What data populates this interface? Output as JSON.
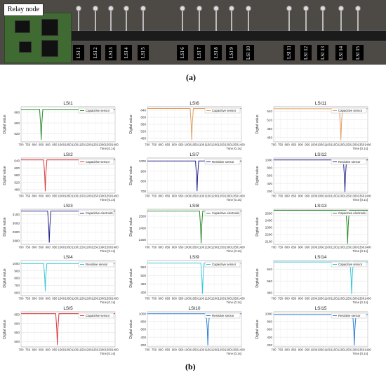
{
  "photo": {
    "relay_label": "Relay node",
    "lsi_labels": [
      "LSI 1",
      "LSI 2",
      "LSI 3",
      "LSI 4",
      "LSI 5",
      "LSI 6",
      "LSI 7",
      "LSI 8",
      "LSI 9",
      "LSI 10",
      "LSI 11",
      "LSI 12",
      "LSI 13",
      "LSI 14",
      "LSI 15"
    ],
    "caption": "(a)"
  },
  "caption_b": "(b)",
  "colors": {
    "green": "#2e8b2e",
    "orange": "#e0a060",
    "red": "#d83a3a",
    "navy": "#24248c",
    "cyan": "#38c8d8",
    "blue": "#2e7fd4"
  },
  "chart_data": [
    {
      "type": "line",
      "title": "LSI1",
      "ylabel": "Digital value",
      "xlabel": "Time [0.1s]",
      "xticks": [
        700,
        750,
        800,
        850,
        900,
        950,
        1000,
        1050,
        1100,
        1150,
        1200,
        1250,
        1300,
        1350,
        1400
      ],
      "yticks": [
        520,
        600,
        680
      ],
      "ylim": [
        460,
        720
      ],
      "legend": "Capacitive sensor",
      "color": "green",
      "baseline": 700,
      "dip_x": 850,
      "dip_y": 475
    },
    {
      "type": "line",
      "title": "LSI6",
      "ylabel": "Digital value",
      "xlabel": "Time [0.1s]",
      "xticks": [
        700,
        750,
        800,
        850,
        900,
        950,
        1000,
        1050,
        1100,
        1150,
        1200,
        1250,
        1300,
        1350,
        1400
      ],
      "yticks": [
        480,
        520,
        560,
        600,
        640
      ],
      "ylim": [
        460,
        660
      ],
      "legend": "Capacitive sensor",
      "color": "orange",
      "baseline": 650,
      "dip_x": 1030,
      "dip_y": 470
    },
    {
      "type": "line",
      "title": "LSI11",
      "ylabel": "Digital value",
      "xlabel": "Time [0.1s]",
      "xticks": [
        700,
        750,
        800,
        850,
        900,
        950,
        1000,
        1050,
        1100,
        1150,
        1200,
        1250,
        1300,
        1350,
        1400
      ],
      "yticks": [
        450,
        480,
        510,
        540
      ],
      "ylim": [
        435,
        555
      ],
      "legend": "Capacitive sensor",
      "color": "orange",
      "baseline": 548,
      "dip_x": 1200,
      "dip_y": 440
    },
    {
      "type": "line",
      "title": "LSI2",
      "ylabel": "Digital value",
      "xlabel": "Time [0.1s]",
      "xticks": [
        700,
        750,
        800,
        850,
        900,
        950,
        1000,
        1050,
        1100,
        1150,
        1200,
        1250,
        1300,
        1350,
        1400
      ],
      "yticks": [
        480,
        520,
        560,
        600,
        640
      ],
      "ylim": [
        460,
        655
      ],
      "legend": "Capacitive sensor",
      "color": "red",
      "baseline": 645,
      "dip_x": 880,
      "dip_y": 470
    },
    {
      "type": "line",
      "title": "LSI7",
      "ylabel": "Digital value",
      "xlabel": "Time [0.1s]",
      "xticks": [
        700,
        750,
        800,
        850,
        900,
        950,
        1000,
        1050,
        1100,
        1150,
        1200,
        1250,
        1300,
        1350,
        1400
      ],
      "yticks": [
        700,
        800,
        900,
        1000
      ],
      "ylim": [
        680,
        1030
      ],
      "legend": "Resistive sensor",
      "color": "navy",
      "baseline": 1000,
      "dip_x": 1070,
      "dip_y": 700
    },
    {
      "type": "line",
      "title": "LSI12",
      "ylabel": "Digital value",
      "xlabel": "Time [0.1s]",
      "xticks": [
        700,
        750,
        800,
        850,
        900,
        950,
        1000,
        1050,
        1100,
        1150,
        1200,
        1250,
        1300,
        1350,
        1400
      ],
      "yticks": [
        200,
        400,
        600,
        800,
        1000
      ],
      "ylim": [
        150,
        1050
      ],
      "legend": "Resistive sensor",
      "color": "navy",
      "baseline": 1000,
      "dip_x": 1230,
      "dip_y": 180
    },
    {
      "type": "line",
      "title": "LSI3",
      "ylabel": "Digital value",
      "xlabel": "Time [0.1s]",
      "xticks": [
        700,
        750,
        800,
        850,
        900,
        950,
        1000,
        1050,
        1100,
        1150,
        1200,
        1250,
        1300,
        1350,
        1400
      ],
      "yticks": [
        2800,
        2900,
        3000,
        3100
      ],
      "ylim": [
        2760,
        3160
      ],
      "legend": "Capacitive electrode",
      "color": "navy",
      "baseline": 3140,
      "dip_x": 910,
      "dip_y": 2780
    },
    {
      "type": "line",
      "title": "LSI8",
      "ylabel": "Digital value",
      "xlabel": "Time [0.1s]",
      "xticks": [
        700,
        750,
        800,
        850,
        900,
        950,
        1000,
        1050,
        1100,
        1150,
        1200,
        1250,
        1300,
        1350,
        1400
      ],
      "yticks": [
        2300,
        2400,
        2500
      ],
      "ylim": [
        2260,
        2560
      ],
      "legend": "Capacitive electrode",
      "color": "green",
      "baseline": 2545,
      "dip_x": 1100,
      "dip_y": 2270
    },
    {
      "type": "line",
      "title": "LSI13",
      "ylabel": "Digital value",
      "xlabel": "Time [0.1s]",
      "xticks": [
        700,
        750,
        800,
        850,
        900,
        950,
        1000,
        1050,
        1100,
        1150,
        1200,
        1250,
        1300,
        1350,
        1400
      ],
      "yticks": [
        2100,
        2200,
        2300,
        2400,
        2500
      ],
      "ylim": [
        2060,
        2560
      ],
      "legend": "Capacitive electrode",
      "color": "green",
      "baseline": 2545,
      "dip_x": 1250,
      "dip_y": 2070
    },
    {
      "type": "line",
      "title": "LSI4",
      "ylabel": "Digital value",
      "xlabel": "Time [0.1s]",
      "xticks": [
        700,
        750,
        800,
        850,
        900,
        950,
        1000,
        1050,
        1100,
        1150,
        1200,
        1250,
        1300,
        1350,
        1400
      ],
      "yticks": [
        600,
        700,
        800,
        900,
        1000
      ],
      "ylim": [
        560,
        1040
      ],
      "legend": "Resistive sensor",
      "color": "cyan",
      "baseline": 1000,
      "dip_x": 880,
      "dip_y": 620
    },
    {
      "type": "line",
      "title": "LSI9",
      "ylabel": "Digital value",
      "xlabel": "Time [0.1s]",
      "xticks": [
        700,
        750,
        800,
        850,
        900,
        950,
        1000,
        1050,
        1100,
        1150,
        1200,
        1250,
        1300,
        1350,
        1400
      ],
      "yticks": [
        400,
        450,
        500,
        550
      ],
      "ylim": [
        380,
        590
      ],
      "legend": "Capacitive sensor",
      "color": "cyan",
      "baseline": 575,
      "dip_x": 1110,
      "dip_y": 390
    },
    {
      "type": "line",
      "title": "LSI14",
      "ylabel": "Digital value",
      "xlabel": "Time [0.1s]",
      "xticks": [
        700,
        750,
        800,
        850,
        900,
        950,
        1000,
        1050,
        1100,
        1150,
        1200,
        1250,
        1300,
        1350,
        1400
      ],
      "yticks": [
        480,
        560,
        640
      ],
      "ylim": [
        460,
        700
      ],
      "legend": "Capacitive sensor",
      "color": "cyan",
      "baseline": 690,
      "dip_x": 1280,
      "dip_y": 470
    },
    {
      "type": "line",
      "title": "LSI5",
      "ylabel": "Digital value",
      "xlabel": "Time [0.1s]",
      "xticks": [
        700,
        750,
        800,
        850,
        900,
        950,
        1000,
        1050,
        1100,
        1150,
        1200,
        1250,
        1300,
        1350,
        1400
      ],
      "yticks": [
        500,
        550,
        600,
        650
      ],
      "ylim": [
        470,
        665
      ],
      "legend": "Capacitive sensor",
      "color": "red",
      "baseline": 655,
      "dip_x": 970,
      "dip_y": 480
    },
    {
      "type": "line",
      "title": "LSI10",
      "ylabel": "Digital value",
      "xlabel": "Time [0.1s]",
      "xticks": [
        700,
        750,
        800,
        850,
        900,
        950,
        1000,
        1050,
        1100,
        1150,
        1200,
        1250,
        1300,
        1350,
        1400
      ],
      "yticks": [
        200,
        400,
        600,
        800,
        1000
      ],
      "ylim": [
        150,
        1050
      ],
      "legend": "Resistive sensor",
      "color": "blue",
      "baseline": 1000,
      "dip_x": 1150,
      "dip_y": 190
    },
    {
      "type": "line",
      "title": "LSI15",
      "ylabel": "Digital value",
      "xlabel": "Time [0.1s]",
      "xticks": [
        700,
        750,
        800,
        850,
        900,
        950,
        1000,
        1050,
        1100,
        1150,
        1200,
        1250,
        1300,
        1350,
        1400
      ],
      "yticks": [
        200,
        400,
        600,
        800,
        1000
      ],
      "ylim": [
        150,
        1050
      ],
      "legend": "Resistive sensor",
      "color": "blue",
      "baseline": 980,
      "dip_x": 1300,
      "dip_y": 190
    }
  ]
}
